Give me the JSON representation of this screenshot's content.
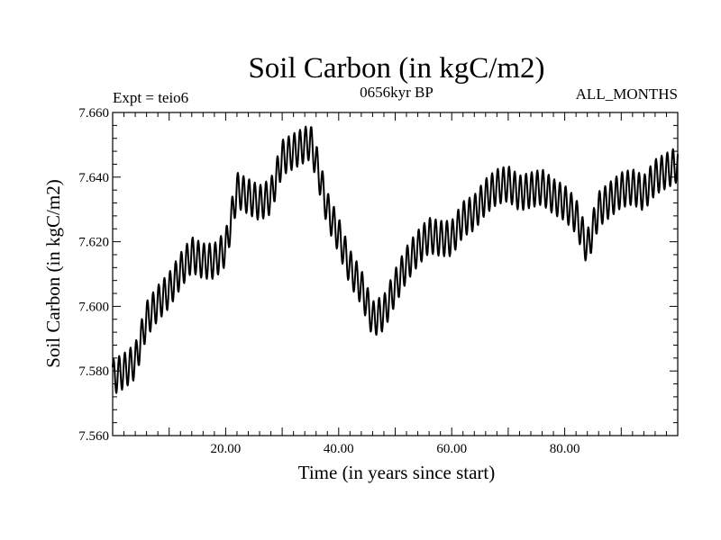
{
  "chart_data": {
    "type": "line",
    "title": "Soil Carbon (in kgC/m2)",
    "subtitle": "0656kyr BP",
    "left_label": "Expt = teio6",
    "right_label": "ALL_MONTHS",
    "xlabel": "Time (in years since start)",
    "ylabel": "Soil Carbon (in kgC/m2)",
    "xlim": [
      0,
      100
    ],
    "ylim": [
      7.56,
      7.66
    ],
    "x_ticks": [
      20,
      40,
      60,
      80
    ],
    "x_tick_labels": [
      "20.00",
      "40.00",
      "60.00",
      "80.00"
    ],
    "y_ticks": [
      7.56,
      7.58,
      7.6,
      7.62,
      7.64,
      7.66
    ],
    "y_tick_labels": [
      "7.560",
      "7.580",
      "7.600",
      "7.620",
      "7.640",
      "7.660"
    ],
    "grid": false,
    "seasonal_amplitude": 0.0055,
    "series": [
      {
        "name": "Soil Carbon",
        "color": "#000000",
        "x": [
          0,
          2,
          4,
          6,
          8,
          10,
          12,
          14,
          16,
          18,
          20,
          22,
          24,
          26,
          28,
          30,
          32,
          34,
          35,
          36,
          38,
          40,
          42,
          44,
          46,
          48,
          50,
          52,
          54,
          56,
          58,
          60,
          62,
          64,
          66,
          68,
          70,
          72,
          74,
          76,
          78,
          80,
          82,
          84,
          86,
          88,
          90,
          92,
          94,
          96,
          98,
          100
        ],
        "y": [
          7.578,
          7.58,
          7.583,
          7.596,
          7.601,
          7.605,
          7.611,
          7.616,
          7.614,
          7.614,
          7.618,
          7.636,
          7.634,
          7.632,
          7.634,
          7.646,
          7.648,
          7.65,
          7.651,
          7.645,
          7.63,
          7.622,
          7.612,
          7.606,
          7.596,
          7.598,
          7.606,
          7.613,
          7.618,
          7.622,
          7.621,
          7.621,
          7.627,
          7.629,
          7.634,
          7.637,
          7.638,
          7.635,
          7.636,
          7.637,
          7.634,
          7.632,
          7.628,
          7.618,
          7.63,
          7.633,
          7.636,
          7.637,
          7.635,
          7.64,
          7.642,
          7.644
        ]
      }
    ]
  }
}
